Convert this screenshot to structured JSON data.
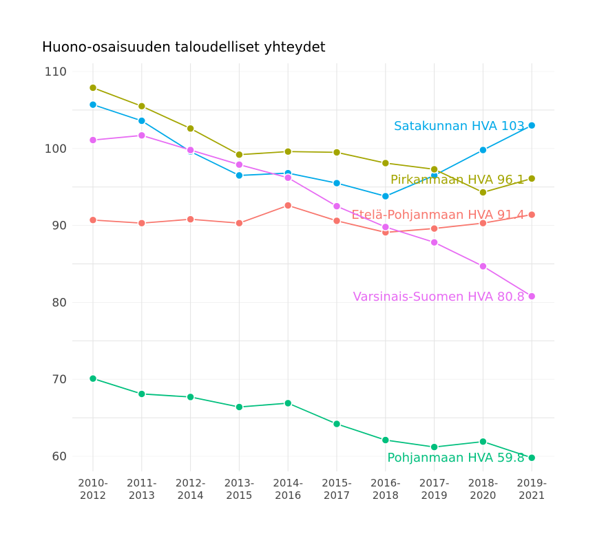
{
  "chart_data": {
    "type": "line",
    "title": "Huono-osaisuuden taloudelliset yhteydet",
    "xlabel": "",
    "ylabel": "",
    "categories": [
      "2010-\n2012",
      "2011-\n2013",
      "2012-\n2014",
      "2013-\n2015",
      "2014-\n2016",
      "2015-\n2017",
      "2016-\n2018",
      "2017-\n2019",
      "2018-\n2020",
      "2019-\n2021"
    ],
    "ylim": [
      58,
      110.5
    ],
    "yticks": [
      60,
      70,
      80,
      90,
      100,
      110
    ],
    "grid": true,
    "series": [
      {
        "name": "Satakunnan HVA",
        "end_label": "Satakunnan HVA 103",
        "color": "#00A9E8",
        "values": [
          105.7,
          103.6,
          99.6,
          96.5,
          96.8,
          95.5,
          93.8,
          96.5,
          99.8,
          103.0
        ]
      },
      {
        "name": "Pirkanmaan HVA",
        "end_label": "Pirkanmaan HVA 96.1",
        "color": "#A3A500",
        "values": [
          107.9,
          105.5,
          102.6,
          99.2,
          99.6,
          99.5,
          98.1,
          97.3,
          94.3,
          96.1
        ]
      },
      {
        "name": "Etelä-Pohjanmaan HVA",
        "end_label": "Etelä-Pohjanmaan HVA 91.4",
        "color": "#F8766D",
        "values": [
          90.7,
          90.3,
          90.8,
          90.3,
          92.6,
          90.6,
          89.1,
          89.6,
          90.3,
          91.4
        ]
      },
      {
        "name": "Varsinais-Suomen HVA",
        "end_label": "Varsinais-Suomen HVA 80.8",
        "color": "#E76BF3",
        "values": [
          101.1,
          101.7,
          99.8,
          97.9,
          96.2,
          92.5,
          89.8,
          87.8,
          84.7,
          80.8
        ]
      },
      {
        "name": "Pohjanmaan HVA",
        "end_label": "Pohjanmaan HVA 59.8",
        "color": "#00BF7D",
        "values": [
          70.1,
          68.1,
          67.7,
          66.4,
          66.9,
          64.2,
          62.1,
          61.2,
          61.9,
          59.8
        ]
      }
    ]
  }
}
